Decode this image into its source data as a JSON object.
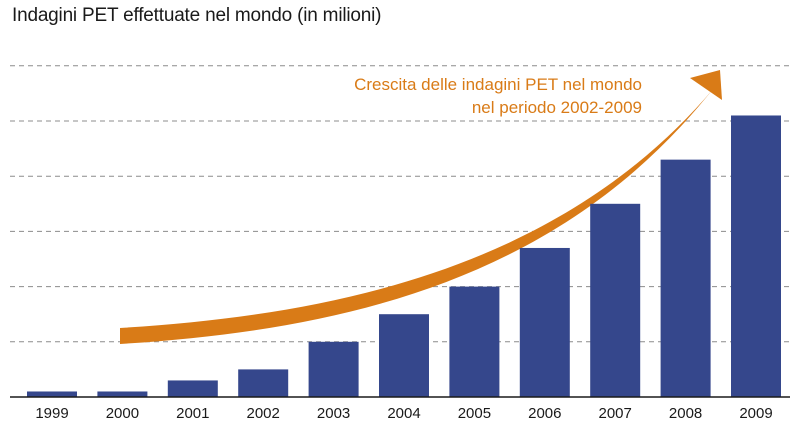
{
  "chart_data": {
    "type": "bar",
    "title": "Indagini PET effettuate nel mondo (in milioni)",
    "categories": [
      "1999",
      "2000",
      "2001",
      "2002",
      "2003",
      "2004",
      "2005",
      "2006",
      "2007",
      "2008",
      "2009"
    ],
    "values": [
      0.1,
      0.1,
      0.3,
      0.5,
      1.0,
      1.5,
      2.0,
      2.7,
      3.5,
      4.3,
      5.1
    ],
    "ylim": [
      0,
      6
    ],
    "xlabel": "",
    "ylabel": "",
    "grid": true,
    "gridline_values": [
      1,
      2,
      3,
      4,
      5,
      6
    ],
    "annotation": {
      "line1": "Crescita delle indagini PET nel mondo",
      "line2": "nel periodo 2002-2009"
    },
    "colors": {
      "bar": "#35478c",
      "arrow": "#d97b17",
      "grid": "#8c8c8c",
      "axis": "#1a1a1a"
    }
  }
}
